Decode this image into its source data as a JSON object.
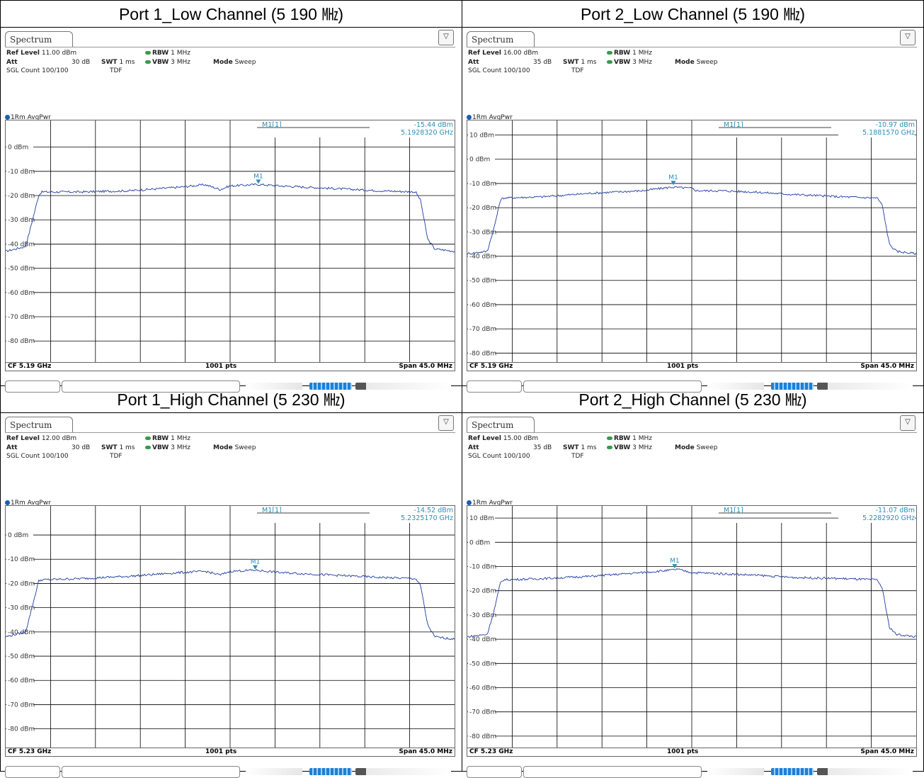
{
  "panels": [
    {
      "title": "Port 1_Low Channel (5 190 ㎒)",
      "tab": "Spectrum",
      "ref_level_label": "Ref Level",
      "ref_level": "11.00 dBm",
      "att_label": "Att",
      "att": "30 dB",
      "swt_label": "SWT",
      "swt": "1 ms",
      "rbw_label": "RBW",
      "rbw": "1 MHz",
      "vbw_label": "VBW",
      "vbw": "3 MHz",
      "mode_label": "Mode",
      "mode": "Sweep",
      "sgl": "SGL Count 100/100",
      "tdf": "TDF",
      "trace": "1Rm AvgPwr",
      "marker_name": "M1[1]",
      "marker_tag": "M1",
      "marker_level": "-15.44 dBm",
      "marker_freq": "5.1928320 GHz",
      "cf": "CF 5.19 GHz",
      "pts": "1001 pts",
      "span": "Span 45.0 MHz"
    },
    {
      "title": "Port 2_Low Channel (5 190 ㎒)",
      "tab": "Spectrum",
      "ref_level_label": "Ref Level",
      "ref_level": "16.00 dBm",
      "att_label": "Att",
      "att": "35 dB",
      "swt_label": "SWT",
      "swt": "1 ms",
      "rbw_label": "RBW",
      "rbw": "1 MHz",
      "vbw_label": "VBW",
      "vbw": "3 MHz",
      "mode_label": "Mode",
      "mode": "Sweep",
      "sgl": "SGL Count 100/100",
      "tdf": "TDF",
      "trace": "1Rm AvgPwr",
      "marker_name": "M1[1]",
      "marker_tag": "M1",
      "marker_level": "-10.97 dBm",
      "marker_freq": "5.1881570 GHz",
      "cf": "CF 5.19 GHz",
      "pts": "1001 pts",
      "span": "Span 45.0 MHz"
    },
    {
      "title": "Port 1_High Channel (5 230 ㎒)",
      "tab": "Spectrum",
      "ref_level_label": "Ref Level",
      "ref_level": "12.00 dBm",
      "att_label": "Att",
      "att": "30 dB",
      "swt_label": "SWT",
      "swt": "1 ms",
      "rbw_label": "RBW",
      "rbw": "1 MHz",
      "vbw_label": "VBW",
      "vbw": "3 MHz",
      "mode_label": "Mode",
      "mode": "Sweep",
      "sgl": "SGL Count 100/100",
      "tdf": "TDF",
      "trace": "1Rm AvgPwr",
      "marker_name": "M1[1]",
      "marker_tag": "M1",
      "marker_level": "-14.52 dBm",
      "marker_freq": "5.2325170 GHz",
      "cf": "CF 5.23 GHz",
      "pts": "1001 pts",
      "span": "Span 45.0 MHz"
    },
    {
      "title": "Port 2_High Channel (5 230 ㎒)",
      "tab": "Spectrum",
      "ref_level_label": "Ref Level",
      "ref_level": "15.00 dBm",
      "att_label": "Att",
      "att": "35 dB",
      "swt_label": "SWT",
      "swt": "1 ms",
      "rbw_label": "RBW",
      "rbw": "1 MHz",
      "vbw_label": "VBW",
      "vbw": "3 MHz",
      "mode_label": "Mode",
      "mode": "Sweep",
      "sgl": "SGL Count 100/100",
      "tdf": "TDF",
      "trace": "1Rm AvgPwr",
      "marker_name": "M1[1]",
      "marker_tag": "M1",
      "marker_level": "-11.07 dBm",
      "marker_freq": "5.2282920 GHz",
      "cf": "CF 5.23 GHz",
      "pts": "1001 pts",
      "span": "Span 45.0 MHz"
    }
  ],
  "chart_data": [
    {
      "type": "line",
      "ref_level_dbm": 11,
      "ylim": [
        -89,
        11
      ],
      "y_ticks": [
        0,
        -10,
        -20,
        -30,
        -40,
        -50,
        -60,
        -70,
        -80
      ],
      "y_tick_labels": [
        "0 dBm",
        "-10 dBm",
        "-20 dBm",
        "-30 dBm",
        "-40 dBm",
        "-50 dBm",
        "-60 dBm",
        "-70 dBm",
        "-80 dBm"
      ],
      "center_ghz": 5.19,
      "span_mhz": 45.0,
      "points": 1001,
      "series": [
        {
          "x_mhz": [
            -22.5,
            -20.5,
            -19.8,
            -19.2,
            -18.9,
            -15,
            -10,
            -5,
            -2.5,
            -1,
            0,
            2.8,
            5,
            10,
            15,
            18.6,
            19.1,
            19.8,
            20.5,
            22.5
          ],
          "y_dbm": [
            -43,
            -41,
            -30,
            -20,
            -18.5,
            -18.5,
            -18,
            -16.5,
            -15.5,
            -17.5,
            -16,
            -15.4,
            -16,
            -17,
            -18,
            -18.5,
            -22,
            -38,
            -42,
            -43
          ]
        }
      ],
      "marker": {
        "x_ghz": 5.192832,
        "y_dbm": -15.44
      }
    },
    {
      "type": "line",
      "ref_level_dbm": 16,
      "ylim": [
        -84,
        16
      ],
      "y_ticks": [
        10,
        0,
        -10,
        -20,
        -30,
        -40,
        -50,
        -60,
        -70,
        -80
      ],
      "y_tick_labels": [
        "10 dBm",
        "0 dBm",
        "-10 dBm",
        "-20 dBm",
        "-30 dBm",
        "-40 dBm",
        "-50 dBm",
        "-60 dBm",
        "-70 dBm",
        "-80 dBm"
      ],
      "center_ghz": 5.19,
      "span_mhz": 45.0,
      "points": 1001,
      "series": [
        {
          "x_mhz": [
            -22.5,
            -20.5,
            -19.8,
            -19.2,
            -18.9,
            -15,
            -10,
            -5,
            -2,
            0,
            0.5,
            3,
            6,
            10,
            15,
            18.6,
            19.1,
            19.8,
            20.5,
            22.5
          ],
          "y_dbm": [
            -39,
            -38,
            -28,
            -17,
            -16,
            -15.5,
            -14,
            -13,
            -11.5,
            -12,
            -13,
            -13,
            -13.5,
            -14.5,
            -15.5,
            -16,
            -19,
            -35,
            -38,
            -39
          ]
        }
      ],
      "marker": {
        "x_ghz": 5.188157,
        "y_dbm": -10.97
      }
    },
    {
      "type": "line",
      "ref_level_dbm": 12,
      "ylim": [
        -88,
        12
      ],
      "y_ticks": [
        0,
        -10,
        -20,
        -30,
        -40,
        -50,
        -60,
        -70,
        -80
      ],
      "y_tick_labels": [
        "0 dBm",
        "-10 dBm",
        "-20 dBm",
        "-30 dBm",
        "-40 dBm",
        "-50 dBm",
        "-60 dBm",
        "-70 dBm",
        "-80 dBm"
      ],
      "center_ghz": 5.23,
      "span_mhz": 45.0,
      "points": 1001,
      "series": [
        {
          "x_mhz": [
            -22.5,
            -20.5,
            -19.8,
            -19.2,
            -18.9,
            -15,
            -10,
            -5,
            -2.5,
            -1,
            0,
            2.5,
            5,
            10,
            15,
            18.6,
            19.1,
            19.8,
            20.5,
            22.5
          ],
          "y_dbm": [
            -42,
            -40,
            -29,
            -19,
            -18.5,
            -18,
            -17,
            -15.5,
            -15,
            -16.5,
            -15,
            -14.5,
            -15.5,
            -16.5,
            -17.5,
            -18,
            -21,
            -37,
            -42,
            -43
          ]
        }
      ],
      "marker": {
        "x_ghz": 5.232517,
        "y_dbm": -14.52
      }
    },
    {
      "type": "line",
      "ref_level_dbm": 15,
      "ylim": [
        -85,
        15
      ],
      "y_ticks": [
        10,
        0,
        -10,
        -20,
        -30,
        -40,
        -50,
        -60,
        -70,
        -80
      ],
      "y_tick_labels": [
        "10 dBm",
        "0 dBm",
        "-10 dBm",
        "-20 dBm",
        "-30 dBm",
        "-40 dBm",
        "-50 dBm",
        "-60 dBm",
        "-70 dBm",
        "-80 dBm"
      ],
      "center_ghz": 5.23,
      "span_mhz": 45.0,
      "points": 1001,
      "series": [
        {
          "x_mhz": [
            -22.5,
            -20.5,
            -19.8,
            -19.2,
            -18.9,
            -15,
            -10,
            -5,
            -2,
            -1.5,
            0,
            3,
            6,
            10,
            15,
            18.6,
            19.1,
            19.8,
            20.5,
            22.5
          ],
          "y_dbm": [
            -39,
            -38,
            -28,
            -17,
            -15.5,
            -15,
            -14,
            -12.5,
            -11.5,
            -11.1,
            -12.5,
            -13,
            -13.5,
            -14.5,
            -15,
            -15.5,
            -19,
            -35,
            -38,
            -39
          ]
        }
      ],
      "marker": {
        "x_ghz": 5.228292,
        "y_dbm": -11.07
      }
    }
  ],
  "colors": {
    "trace": "#1f3aa0",
    "marker": "#2a8fb8",
    "grid": "#000000"
  }
}
